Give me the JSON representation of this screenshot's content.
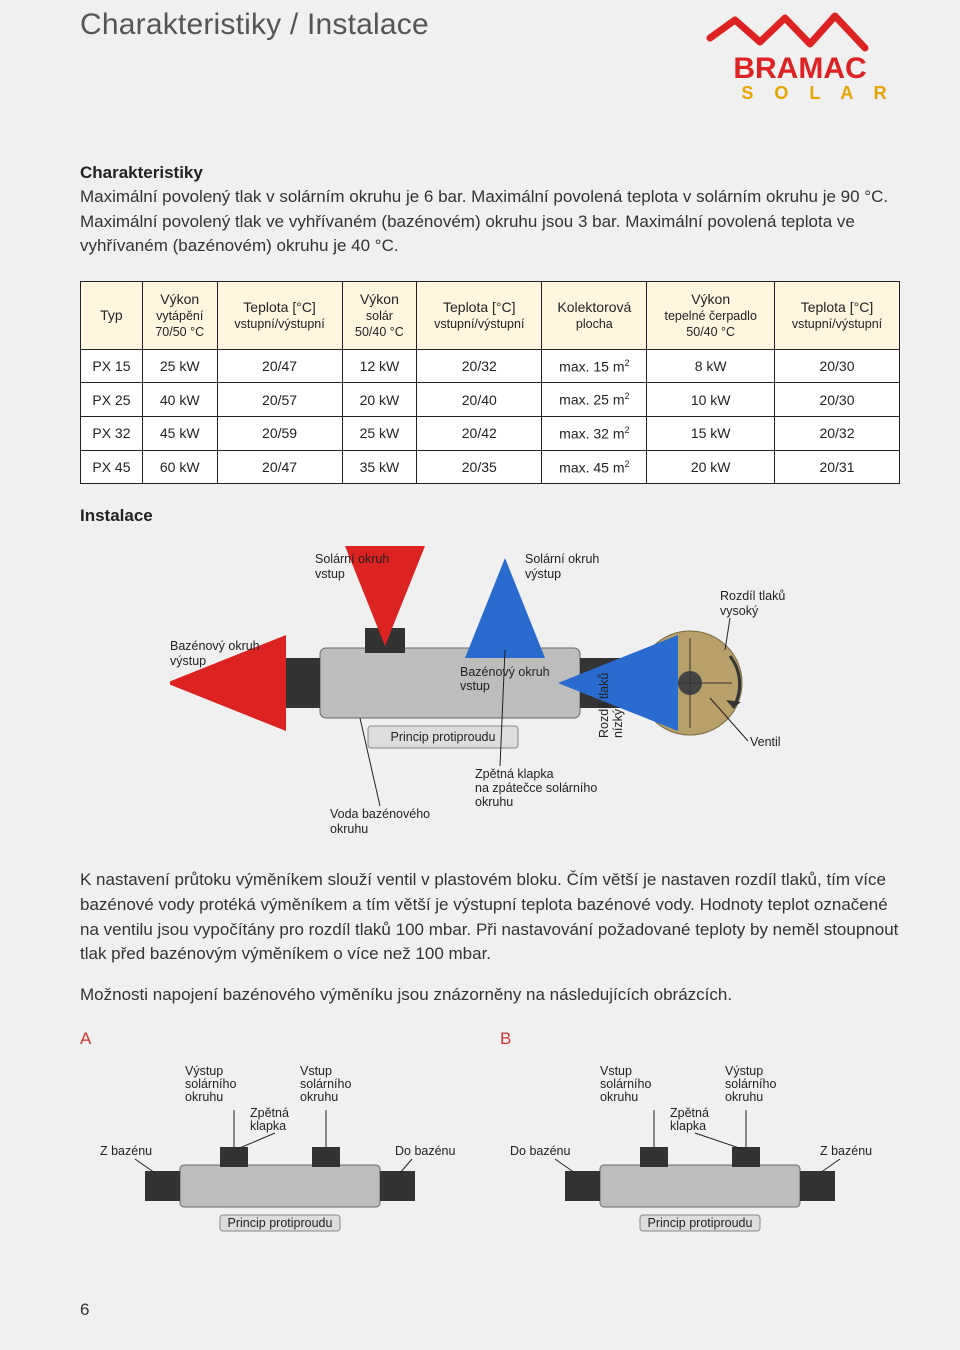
{
  "page_title": "Charakteristiky / Instalace",
  "logo": {
    "brand": "BRAMAC",
    "subbrand": "S O L A R",
    "brand_color": "#d22",
    "sub_color": "#e8a400"
  },
  "section1_heading": "Charakteristiky",
  "intro_text": "Maximální povolený tlak v solárním okruhu je 6 bar. Maximální povolená teplota v solárním okruhu je 90 °C. Maximální povolený tlak ve vyhřívaném (bazénovém) okruhu jsou 3 bar. Maximální povolená teplota ve vyhřívaném (bazénovém) okruhu je 40 °C.",
  "table": {
    "header_bg": "#fff6df",
    "border_color": "#222222",
    "columns": [
      {
        "main": "Typ",
        "sub": ""
      },
      {
        "main": "Výkon",
        "sub": "vytápění\n70/50 °C"
      },
      {
        "main": "Teplota [°C]",
        "sub": "vstupní/výstupní"
      },
      {
        "main": "Výkon",
        "sub": "solár\n50/40 °C"
      },
      {
        "main": "Teplota [°C]",
        "sub": "vstupní/výstupní"
      },
      {
        "main": "Kolektorová",
        "sub": "plocha"
      },
      {
        "main": "Výkon",
        "sub": "tepelné čerpadlo\n50/40 °C"
      },
      {
        "main": "Teplota [°C]",
        "sub": "vstupní/výstupní"
      }
    ],
    "rows": [
      [
        "PX 15",
        "25 kW",
        "20/47",
        "12 kW",
        "20/32",
        "max. 15 m²",
        "8 kW",
        "20/30"
      ],
      [
        "PX 25",
        "40 kW",
        "20/57",
        "20 kW",
        "20/40",
        "max. 25 m²",
        "10 kW",
        "20/30"
      ],
      [
        "PX 32",
        "45 kW",
        "20/59",
        "25 kW",
        "20/42",
        "max. 32 m²",
        "15 kW",
        "20/32"
      ],
      [
        "PX 45",
        "60 kW",
        "20/47",
        "35 kW",
        "20/35",
        "max. 45 m²",
        "20 kW",
        "20/31"
      ]
    ]
  },
  "section2_heading": "Instalace",
  "main_diagram": {
    "labels": {
      "solarni_vstup": "Solární okruh\nvstup",
      "solarni_vystup": "Solární okruh\nvýstup",
      "bazen_vystup": "Bazénový okruh\nvýstup",
      "bazen_vstup": "Bazénový okruh\nvstup",
      "rozdil_vysoky": "Rozdíl tlaků\nvysoký",
      "rozdil_nizky": "Rozdíl tlaků\nnízký",
      "ventil": "Ventil",
      "princip": "Princip protiproudu",
      "zpetna_klapka": "Zpětná klapka\nna zpátečce solárního\nokruhu",
      "voda_bazen": "Voda bazénového\nokruhu"
    },
    "colors": {
      "body": "#bdbdbd",
      "plate": "#888",
      "arrow_red": "#d22",
      "arrow_blue": "#2a6bd0",
      "valve_plate": "#b7a06a"
    }
  },
  "para2": "K nastavení průtoku výměníkem slouží ventil v plastovém bloku. Čím větší je nastaven rozdíl tlaků, tím více bazénové vody protéká výměníkem a tím větší je výstupní teplota bazénové vody. Hodnoty teplot označené na ventilu jsou vypočítány pro rozdíl tlaků 100 mbar. Při nastavování požadované teploty by neměl stoupnout tlak před bazénovým výměníkem o více než 100 mbar.",
  "para3": "Možnosti napojení bazénového výměníku jsou znázorněny na následujících obrázcích.",
  "ab": {
    "a_label": "A",
    "b_label": "B",
    "labels": {
      "vystup_solar": "Výstup\nsolárního\nokruhu",
      "vstup_solar": "Vstup\nsolárního\nokruhu",
      "zpetna": "Zpětná\nklapka",
      "do_bazenu": "Do bazénu",
      "z_bazenu": "Z bazénu",
      "princip": "Princip protiproudu"
    }
  },
  "page_number": "6"
}
